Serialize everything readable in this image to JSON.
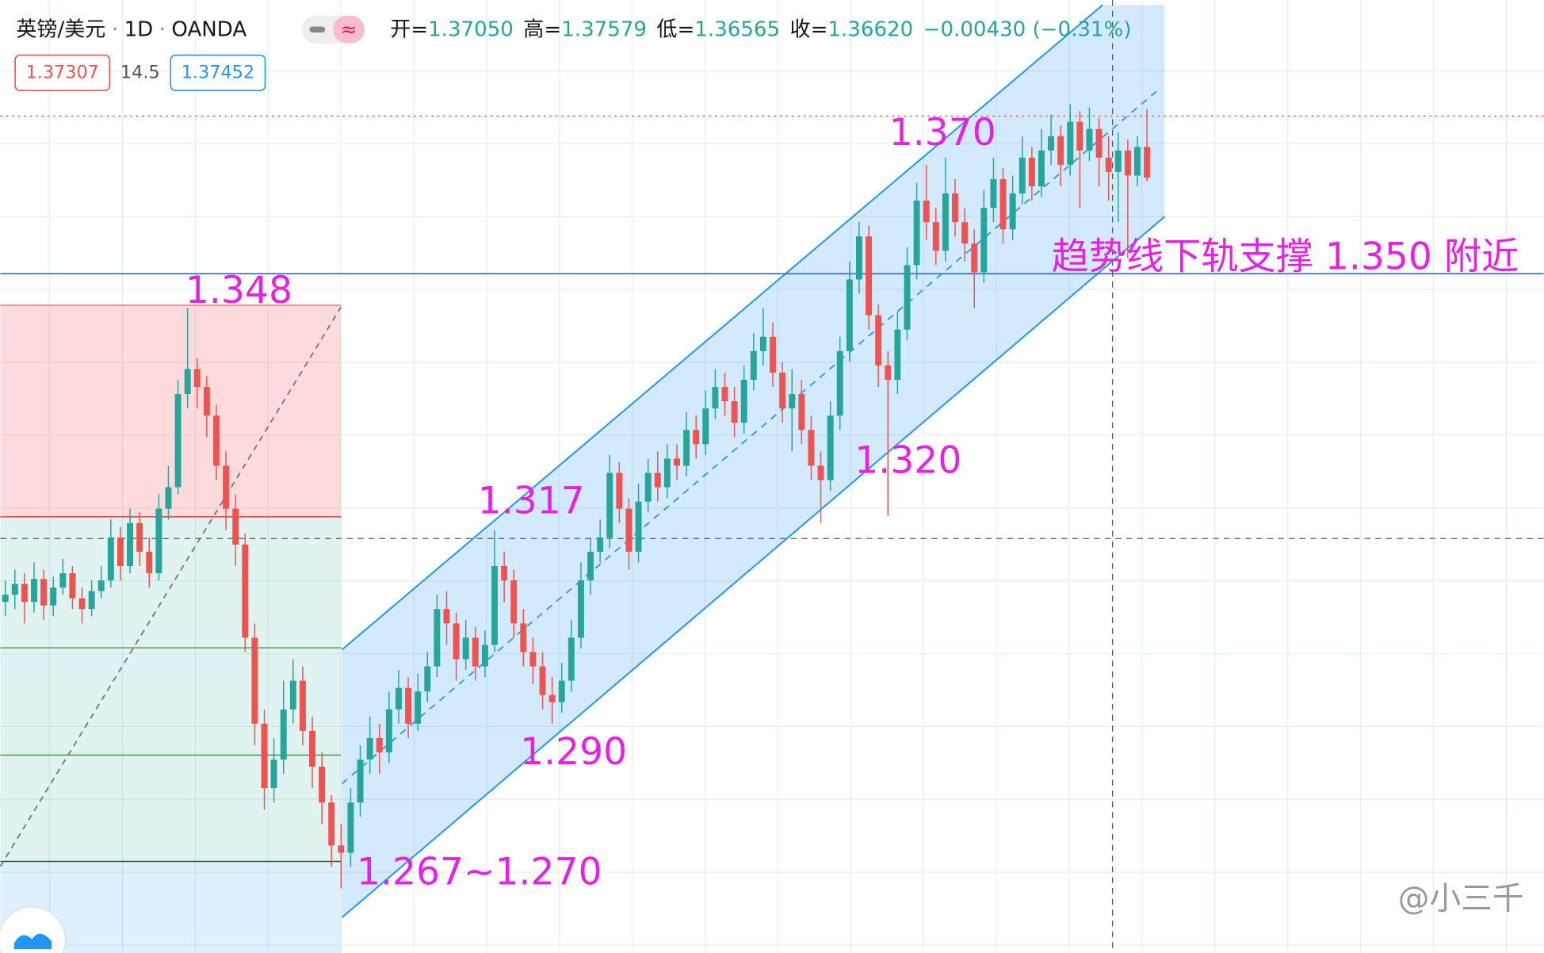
{
  "header": {
    "symbol": "英镑/美元",
    "separator": "·",
    "interval": "1D",
    "source": "OANDA",
    "ohlc": [
      {
        "label": "开=",
        "value": "1.37050"
      },
      {
        "label": "高=",
        "value": "1.37579"
      },
      {
        "label": "低=",
        "value": "1.36565"
      },
      {
        "label": "收=",
        "value": "1.36620"
      }
    ],
    "change": "−0.00430 (−0.31%)"
  },
  "price_boxes": {
    "bid": "1.37307",
    "spread": "14.5",
    "ask": "1.37452"
  },
  "watermark": "@小三千",
  "chart_data": {
    "type": "candlestick",
    "up_color": "#26a69a",
    "down_color": "#ef5350",
    "ylim": [
      1.258,
      1.391
    ],
    "open": [
      1.307,
      1.308,
      1.3095,
      1.307,
      1.3102,
      1.3065,
      1.309,
      1.311,
      1.3075,
      1.306,
      1.3085,
      1.31,
      1.316,
      1.312,
      1.318,
      1.314,
      1.311,
      1.32,
      1.323,
      1.336,
      1.3395,
      1.337,
      1.333,
      1.326,
      1.32,
      1.315,
      1.302,
      1.29,
      1.281,
      1.285,
      1.292,
      1.296,
      1.289,
      1.284,
      1.279,
      1.273,
      1.272,
      1.279,
      1.285,
      1.288,
      1.286,
      1.292,
      1.295,
      1.29,
      1.2945,
      1.298,
      1.306,
      1.304,
      1.299,
      1.302,
      1.298,
      1.301,
      1.312,
      1.31,
      1.304,
      1.3,
      1.298,
      1.294,
      1.293,
      1.296,
      1.302,
      1.31,
      1.314,
      1.316,
      1.325,
      1.32,
      1.314,
      1.321,
      1.325,
      1.323,
      1.327,
      1.326,
      1.331,
      1.329,
      1.334,
      1.337,
      1.335,
      1.332,
      1.338,
      1.342,
      1.344,
      1.339,
      1.334,
      1.336,
      1.331,
      1.326,
      1.324,
      1.333,
      1.342,
      1.352,
      1.358,
      1.347,
      1.34,
      1.338,
      1.345,
      1.354,
      1.363,
      1.36,
      1.356,
      1.364,
      1.36,
      1.357,
      1.353,
      1.362,
      1.366,
      1.359,
      1.364,
      1.369,
      1.365,
      1.37,
      1.372,
      1.368,
      1.374,
      1.37,
      1.373,
      1.369,
      1.367,
      1.37,
      1.3665,
      1.3705
    ],
    "high": [
      1.31,
      1.3115,
      1.311,
      1.3125,
      1.3115,
      1.3105,
      1.313,
      1.312,
      1.309,
      1.31,
      1.312,
      1.3185,
      1.3175,
      1.32,
      1.3195,
      1.316,
      1.322,
      1.326,
      1.338,
      1.348,
      1.341,
      1.3385,
      1.3345,
      1.328,
      1.322,
      1.3165,
      1.304,
      1.292,
      1.288,
      1.296,
      1.299,
      1.298,
      1.291,
      1.286,
      1.28,
      1.276,
      1.281,
      1.287,
      1.291,
      1.29,
      1.2945,
      1.2975,
      1.2965,
      1.297,
      1.3,
      1.308,
      1.3085,
      1.3055,
      1.3045,
      1.3035,
      1.303,
      1.317,
      1.314,
      1.3115,
      1.306,
      1.302,
      1.3,
      1.2965,
      1.2985,
      1.3045,
      1.3125,
      1.316,
      1.3185,
      1.3275,
      1.3265,
      1.3215,
      1.3235,
      1.327,
      1.328,
      1.329,
      1.329,
      1.3335,
      1.333,
      1.3365,
      1.3395,
      1.339,
      1.337,
      1.34,
      1.3445,
      1.348,
      1.346,
      1.3405,
      1.3395,
      1.338,
      1.333,
      1.328,
      1.335,
      1.344,
      1.3545,
      1.36,
      1.3595,
      1.3485,
      1.342,
      1.3475,
      1.3565,
      1.3655,
      1.368,
      1.362,
      1.369,
      1.366,
      1.362,
      1.359,
      1.3645,
      1.369,
      1.3675,
      1.3665,
      1.372,
      1.3705,
      1.373,
      1.375,
      1.3735,
      1.3765,
      1.3755,
      1.376,
      1.3745,
      1.372,
      1.3725,
      1.3715,
      1.372,
      1.3758
    ],
    "low": [
      1.305,
      1.306,
      1.304,
      1.3055,
      1.3045,
      1.305,
      1.308,
      1.306,
      1.304,
      1.305,
      1.3075,
      1.309,
      1.31,
      1.311,
      1.312,
      1.309,
      1.31,
      1.3185,
      1.322,
      1.334,
      1.334,
      1.33,
      1.324,
      1.317,
      1.312,
      1.3,
      1.287,
      1.278,
      1.279,
      1.283,
      1.29,
      1.287,
      1.281,
      1.276,
      1.27,
      1.267,
      1.27,
      1.277,
      1.283,
      1.283,
      1.2845,
      1.29,
      1.288,
      1.289,
      1.293,
      1.2965,
      1.301,
      1.296,
      1.2975,
      1.296,
      1.2965,
      1.3,
      1.307,
      1.302,
      1.298,
      1.2955,
      1.292,
      1.29,
      1.2915,
      1.2945,
      1.3005,
      1.308,
      1.3125,
      1.3145,
      1.318,
      1.3115,
      1.3125,
      1.3195,
      1.321,
      1.3215,
      1.324,
      1.3245,
      1.327,
      1.3275,
      1.3325,
      1.333,
      1.33,
      1.3305,
      1.3365,
      1.34,
      1.337,
      1.332,
      1.328,
      1.329,
      1.324,
      1.318,
      1.3225,
      1.331,
      1.3405,
      1.35,
      1.345,
      1.337,
      1.319,
      1.336,
      1.3435,
      1.352,
      1.3575,
      1.354,
      1.3545,
      1.358,
      1.3545,
      1.348,
      1.3515,
      1.36,
      1.357,
      1.3575,
      1.3625,
      1.363,
      1.3635,
      1.368,
      1.365,
      1.3665,
      1.362,
      1.3685,
      1.365,
      1.363,
      1.36,
      1.355,
      1.365,
      1.3657
    ],
    "close": [
      1.308,
      1.3095,
      1.307,
      1.3102,
      1.3065,
      1.309,
      1.311,
      1.3075,
      1.306,
      1.3085,
      1.31,
      1.316,
      1.312,
      1.318,
      1.314,
      1.311,
      1.32,
      1.323,
      1.336,
      1.3395,
      1.337,
      1.333,
      1.326,
      1.32,
      1.315,
      1.302,
      1.29,
      1.281,
      1.285,
      1.292,
      1.296,
      1.289,
      1.284,
      1.279,
      1.273,
      1.272,
      1.279,
      1.285,
      1.288,
      1.286,
      1.292,
      1.295,
      1.29,
      1.2945,
      1.298,
      1.306,
      1.304,
      1.299,
      1.302,
      1.298,
      1.301,
      1.312,
      1.31,
      1.304,
      1.3,
      1.298,
      1.294,
      1.293,
      1.296,
      1.302,
      1.31,
      1.314,
      1.316,
      1.325,
      1.32,
      1.314,
      1.321,
      1.325,
      1.323,
      1.327,
      1.326,
      1.331,
      1.329,
      1.334,
      1.337,
      1.335,
      1.332,
      1.338,
      1.342,
      1.344,
      1.339,
      1.334,
      1.336,
      1.331,
      1.326,
      1.324,
      1.333,
      1.342,
      1.352,
      1.358,
      1.347,
      1.34,
      1.338,
      1.345,
      1.354,
      1.363,
      1.36,
      1.356,
      1.364,
      1.36,
      1.357,
      1.353,
      1.362,
      1.366,
      1.359,
      1.364,
      1.369,
      1.365,
      1.37,
      1.372,
      1.368,
      1.374,
      1.37,
      1.373,
      1.369,
      1.367,
      1.37,
      1.3665,
      1.3705,
      1.3662
    ],
    "annotations": [
      "1.348",
      "1.317",
      "1.290",
      "1.267~1.270",
      "1.320",
      "1.370",
      "趋势线下轨支撑 1.350 附近"
    ]
  }
}
